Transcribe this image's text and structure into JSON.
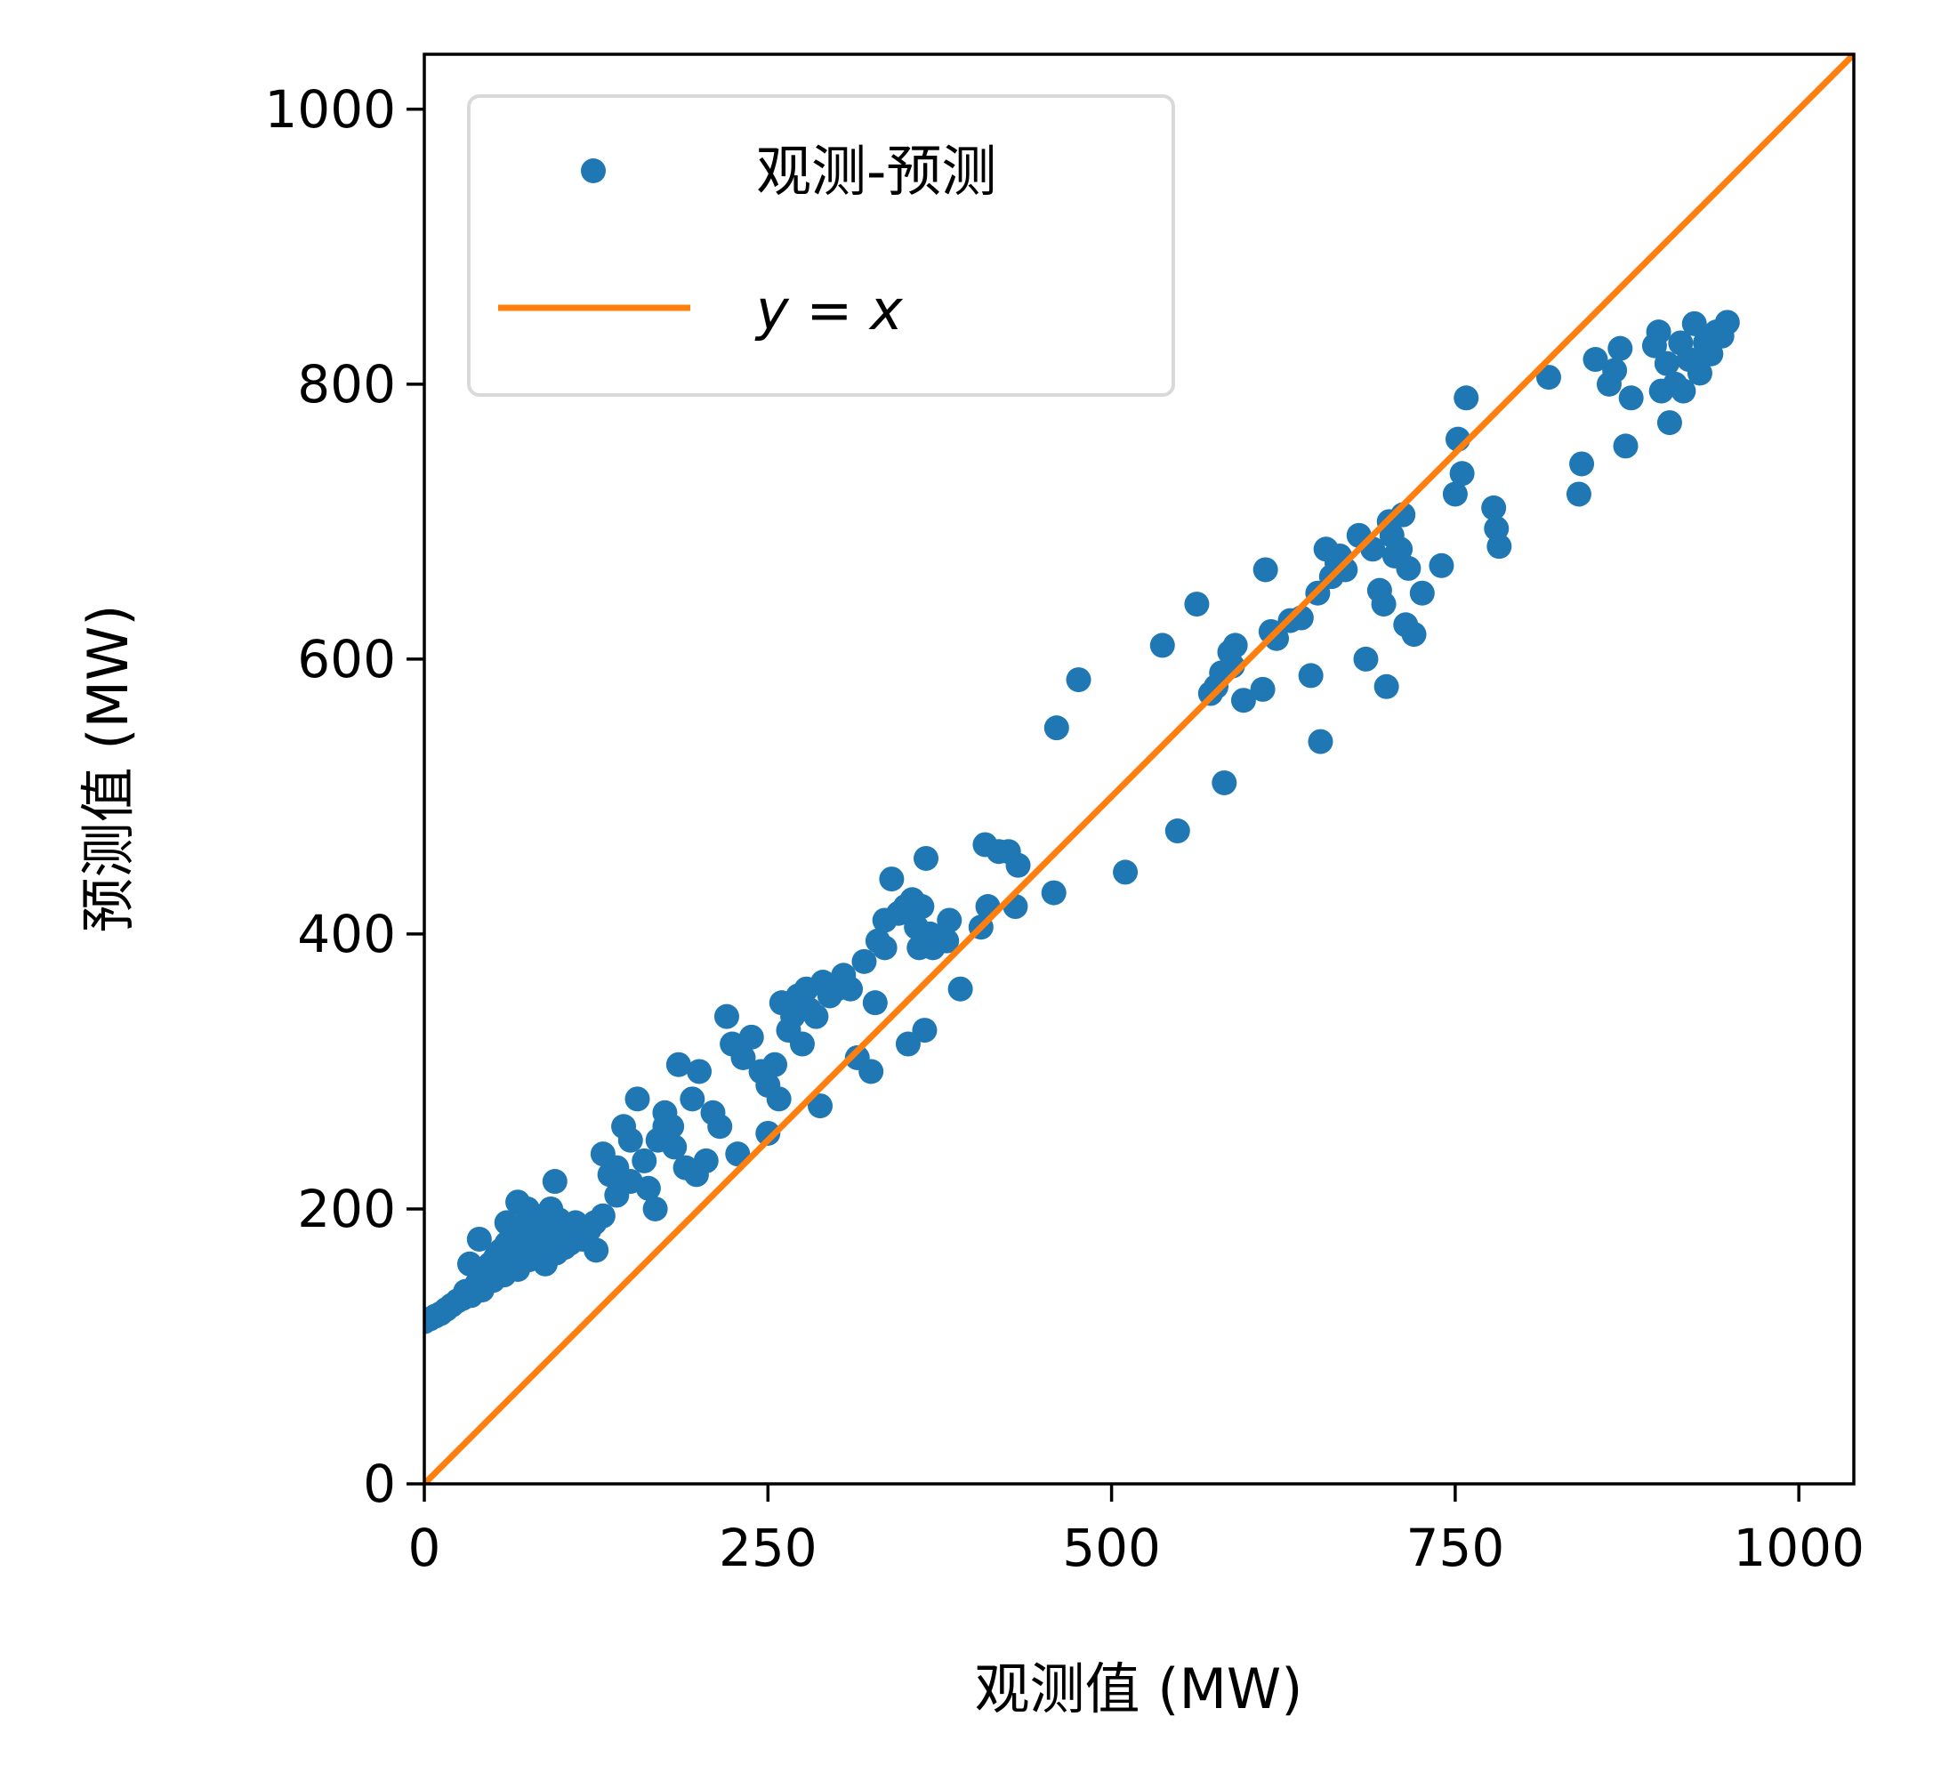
{
  "chart_data": {
    "type": "scatter",
    "xlabel": "观测值 (MW)",
    "ylabel": "预测值 (MW)",
    "xlim": [
      0,
      1040
    ],
    "ylim": [
      0,
      1040
    ],
    "x_ticks": [
      0,
      250,
      500,
      750,
      1000
    ],
    "y_ticks": [
      0,
      200,
      400,
      600,
      800,
      1000
    ],
    "x_tick_labels": [
      "0",
      "250",
      "500",
      "750",
      "1000"
    ],
    "y_tick_labels": [
      "0",
      "200",
      "400",
      "600",
      "800",
      "1000"
    ],
    "grid": false,
    "legend_position": "top-left",
    "legend": {
      "scatter_label": "观测-预测",
      "line_label": "y = x"
    },
    "colors": {
      "scatter": "#1f77b4",
      "line": "#ff7f0e",
      "legend_border": "#d9d9d9"
    },
    "line": {
      "name": "y = x",
      "points": [
        [
          0,
          0
        ],
        [
          1040,
          1040
        ]
      ]
    },
    "series": [
      {
        "name": "观测-预测",
        "points": [
          [
            0,
            118
          ],
          [
            4,
            120
          ],
          [
            8,
            122
          ],
          [
            12,
            124
          ],
          [
            16,
            127
          ],
          [
            20,
            130
          ],
          [
            24,
            133
          ],
          [
            28,
            135
          ],
          [
            30,
            140
          ],
          [
            34,
            137
          ],
          [
            38,
            145
          ],
          [
            40,
            150
          ],
          [
            42,
            141
          ],
          [
            46,
            155
          ],
          [
            48,
            160
          ],
          [
            50,
            148
          ],
          [
            52,
            165
          ],
          [
            54,
            158
          ],
          [
            56,
            170
          ],
          [
            58,
            152
          ],
          [
            60,
            175
          ],
          [
            62,
            162
          ],
          [
            64,
            180
          ],
          [
            66,
            168
          ],
          [
            68,
            156
          ],
          [
            70,
            185
          ],
          [
            72,
            172
          ],
          [
            74,
            190
          ],
          [
            76,
            163
          ],
          [
            78,
            178
          ],
          [
            80,
            195
          ],
          [
            82,
            182
          ],
          [
            84,
            170
          ],
          [
            86,
            188
          ],
          [
            88,
            160
          ],
          [
            90,
            176
          ],
          [
            92,
            200
          ],
          [
            94,
            185
          ],
          [
            96,
            168
          ],
          [
            98,
            192
          ],
          [
            100,
            180
          ],
          [
            102,
            172
          ],
          [
            104,
            185
          ],
          [
            106,
            175
          ],
          [
            110,
            190
          ],
          [
            115,
            178
          ],
          [
            120,
            185
          ],
          [
            125,
            170
          ],
          [
            130,
            195
          ],
          [
            33,
            160
          ],
          [
            40,
            178
          ],
          [
            60,
            190
          ],
          [
            68,
            205
          ],
          [
            75,
            200
          ],
          [
            95,
            220
          ],
          [
            124,
            190
          ],
          [
            130,
            240
          ],
          [
            135,
            225
          ],
          [
            140,
            230
          ],
          [
            140,
            210
          ],
          [
            145,
            260
          ],
          [
            150,
            250
          ],
          [
            150,
            220
          ],
          [
            155,
            280
          ],
          [
            160,
            235
          ],
          [
            163,
            215
          ],
          [
            168,
            200
          ],
          [
            170,
            250
          ],
          [
            175,
            260
          ],
          [
            175,
            270
          ],
          [
            180,
            260
          ],
          [
            182,
            245
          ],
          [
            185,
            305
          ],
          [
            190,
            230
          ],
          [
            195,
            280
          ],
          [
            198,
            225
          ],
          [
            200,
            300
          ],
          [
            205,
            235
          ],
          [
            210,
            270
          ],
          [
            215,
            260
          ],
          [
            220,
            340
          ],
          [
            224,
            320
          ],
          [
            228,
            240
          ],
          [
            232,
            310
          ],
          [
            238,
            325
          ],
          [
            245,
            300
          ],
          [
            250,
            255
          ],
          [
            250,
            290
          ],
          [
            255,
            305
          ],
          [
            258,
            280
          ],
          [
            260,
            350
          ],
          [
            265,
            330
          ],
          [
            268,
            340
          ],
          [
            272,
            355
          ],
          [
            275,
            320
          ],
          [
            278,
            360
          ],
          [
            280,
            345
          ],
          [
            285,
            340
          ],
          [
            288,
            275
          ],
          [
            290,
            365
          ],
          [
            295,
            355
          ],
          [
            300,
            360
          ],
          [
            305,
            370
          ],
          [
            310,
            360
          ],
          [
            315,
            310
          ],
          [
            320,
            380
          ],
          [
            325,
            300
          ],
          [
            328,
            350
          ],
          [
            330,
            395
          ],
          [
            335,
            390
          ],
          [
            335,
            410
          ],
          [
            340,
            440
          ],
          [
            345,
            415
          ],
          [
            350,
            420
          ],
          [
            352,
            320
          ],
          [
            355,
            425
          ],
          [
            358,
            405
          ],
          [
            360,
            390
          ],
          [
            362,
            420
          ],
          [
            364,
            330
          ],
          [
            365,
            455
          ],
          [
            368,
            400
          ],
          [
            370,
            390
          ],
          [
            380,
            395
          ],
          [
            382,
            410
          ],
          [
            390,
            360
          ],
          [
            405,
            405
          ],
          [
            408,
            465
          ],
          [
            410,
            420
          ],
          [
            418,
            460
          ],
          [
            425,
            460
          ],
          [
            430,
            420
          ],
          [
            432,
            450
          ],
          [
            458,
            430
          ],
          [
            460,
            550
          ],
          [
            476,
            585
          ],
          [
            510,
            445
          ],
          [
            537,
            610
          ],
          [
            548,
            475
          ],
          [
            562,
            640
          ],
          [
            572,
            575
          ],
          [
            576,
            580
          ],
          [
            580,
            590
          ],
          [
            582,
            510
          ],
          [
            586,
            605
          ],
          [
            588,
            595
          ],
          [
            590,
            610
          ],
          [
            596,
            570
          ],
          [
            610,
            578
          ],
          [
            612,
            665
          ],
          [
            616,
            620
          ],
          [
            620,
            615
          ],
          [
            630,
            628
          ],
          [
            638,
            630
          ],
          [
            645,
            588
          ],
          [
            650,
            648
          ],
          [
            652,
            540
          ],
          [
            656,
            680
          ],
          [
            660,
            660
          ],
          [
            664,
            670
          ],
          [
            666,
            675
          ],
          [
            670,
            665
          ],
          [
            680,
            690
          ],
          [
            685,
            600
          ],
          [
            690,
            680
          ],
          [
            695,
            650
          ],
          [
            698,
            640
          ],
          [
            700,
            580
          ],
          [
            702,
            700
          ],
          [
            704,
            690
          ],
          [
            706,
            675
          ],
          [
            710,
            680
          ],
          [
            712,
            705
          ],
          [
            714,
            625
          ],
          [
            716,
            666
          ],
          [
            720,
            618
          ],
          [
            726,
            648
          ],
          [
            740,
            668
          ],
          [
            750,
            720
          ],
          [
            752,
            760
          ],
          [
            755,
            735
          ],
          [
            758,
            790
          ],
          [
            778,
            710
          ],
          [
            780,
            695
          ],
          [
            782,
            682
          ],
          [
            818,
            805
          ],
          [
            840,
            720
          ],
          [
            842,
            742
          ],
          [
            852,
            818
          ],
          [
            862,
            800
          ],
          [
            866,
            810
          ],
          [
            870,
            826
          ],
          [
            874,
            755
          ],
          [
            878,
            790
          ],
          [
            895,
            828
          ],
          [
            898,
            838
          ],
          [
            900,
            795
          ],
          [
            904,
            815
          ],
          [
            906,
            772
          ],
          [
            910,
            800
          ],
          [
            914,
            830
          ],
          [
            916,
            795
          ],
          [
            920,
            818
          ],
          [
            924,
            844
          ],
          [
            928,
            808
          ],
          [
            932,
            830
          ],
          [
            936,
            822
          ],
          [
            940,
            838
          ],
          [
            944,
            835
          ],
          [
            948,
            845
          ]
        ]
      }
    ]
  }
}
